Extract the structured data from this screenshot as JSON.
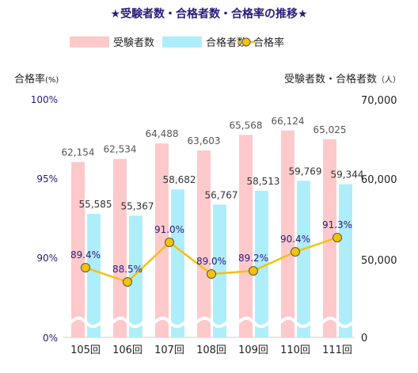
{
  "chart_data": {
    "type": "bar",
    "title": "★受験者数・合格者数・合格率の推移★",
    "categories": [
      "105回",
      "106回",
      "107回",
      "108回",
      "109回",
      "110回",
      "111回"
    ],
    "left_axis": {
      "label": "合格率",
      "unit": "(%)",
      "ticks": [
        "100%",
        "95%",
        "90%",
        "0%"
      ],
      "tick_values": [
        100,
        95,
        90,
        0
      ],
      "ylim": [
        85,
        100
      ],
      "broken": true
    },
    "right_axis": {
      "label": "受験者数・合格者数",
      "unit": "（人）",
      "ticks": [
        "70,000",
        "60,000",
        "50,000",
        "0"
      ],
      "tick_values": [
        70000,
        60000,
        50000,
        0
      ],
      "ylim": [
        40000,
        70000
      ],
      "broken": true
    },
    "legend": {
      "placement": "top-center"
    },
    "series": [
      {
        "name": "受験者数",
        "kind": "bar",
        "axis": "right",
        "color": "#fdc9cb",
        "values": [
          62154,
          62534,
          64488,
          63603,
          65568,
          66124,
          65025
        ],
        "labels": [
          "62,154",
          "62,534",
          "64,488",
          "63,603",
          "65,568",
          "66,124",
          "65,025"
        ]
      },
      {
        "name": "合格者数",
        "kind": "bar",
        "axis": "right",
        "color": "#aeeefa",
        "values": [
          55585,
          55367,
          58682,
          56767,
          58513,
          59769,
          59344
        ],
        "labels": [
          "55,585",
          "55,367",
          "58,682",
          "56,767",
          "58,513",
          "59,769",
          "59,344"
        ]
      },
      {
        "name": "合格率",
        "kind": "line",
        "axis": "left",
        "color": "#f5c20a",
        "marker_color": "#f5c20a",
        "label_color": "#2a1a7a",
        "values": [
          89.4,
          88.5,
          91.0,
          89.0,
          89.2,
          90.4,
          91.3
        ],
        "labels": [
          "89.4%",
          "88.5%",
          "91.0%",
          "89.0%",
          "89.2%",
          "90.4%",
          "91.3%"
        ]
      }
    ],
    "colors": {
      "title": "#2a1a7a",
      "axis_text": "#222222",
      "value_text": "#555555"
    }
  }
}
